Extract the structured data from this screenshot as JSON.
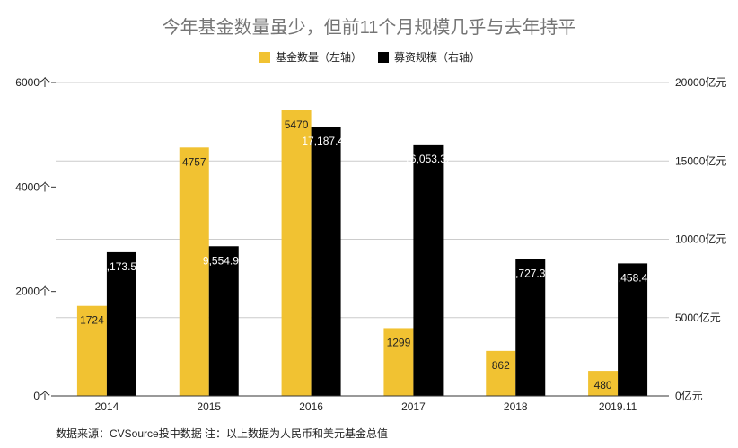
{
  "chart_data": {
    "type": "bar",
    "title": "今年基金数量虽少，但前11个月规模几乎与去年持平",
    "categories": [
      "2014",
      "2015",
      "2016",
      "2017",
      "2018",
      "2019.11"
    ],
    "series": [
      {
        "name": "基金数量（左轴）",
        "axis": "left",
        "color": "#F1C232",
        "label_color": "#222222",
        "values": [
          1724,
          4757,
          5470,
          1299,
          862,
          480
        ],
        "labels": [
          "1724",
          "4757",
          "5470",
          "1299",
          "862",
          "480"
        ]
      },
      {
        "name": "募资规模（右轴）",
        "axis": "right",
        "color": "#000000",
        "label_color": "#ffffff",
        "values": [
          9173.5,
          9554.91,
          17187.47,
          16053.32,
          8727.38,
          8458.41
        ],
        "labels": [
          "9,173.50",
          "9,554.91",
          "17,187.47",
          "16,053.32",
          "8,727.38",
          "8,458.41"
        ]
      }
    ],
    "y_left": {
      "lim": [
        0,
        6000
      ],
      "ticks": [
        "0个",
        "2000个",
        "4000个",
        "6000个"
      ],
      "tick_values": [
        0,
        2000,
        4000,
        6000
      ]
    },
    "y_right": {
      "lim": [
        0,
        20000
      ],
      "ticks": [
        "0亿元",
        "5000亿元",
        "10000亿元",
        "15000亿元",
        "20000亿元"
      ],
      "tick_values": [
        0,
        5000,
        10000,
        15000,
        20000
      ]
    },
    "grid": true,
    "legend_position": "top-center",
    "source_note": "数据来源：CVSource投中数据    注：以上数据为人民币和美元基金总值"
  }
}
